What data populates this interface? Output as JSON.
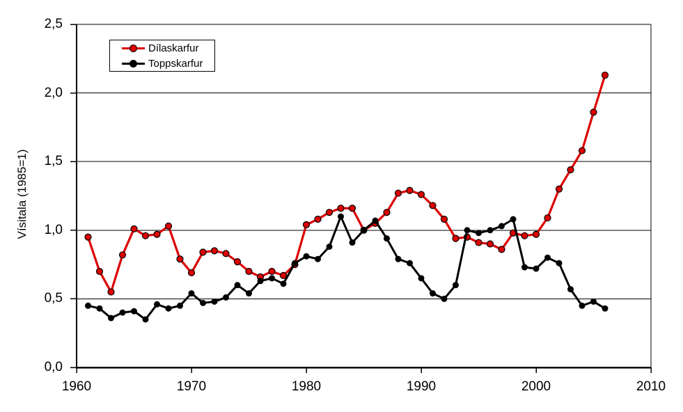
{
  "chart_data": {
    "type": "line",
    "title": "",
    "xlabel": "",
    "ylabel": "Vísitala (1985=1)",
    "xlim": [
      1960,
      2010
    ],
    "ylim": [
      0,
      2.5
    ],
    "grid": "horizontal",
    "legend_position": "top-left",
    "decimal_separator": ",",
    "x_tick_labels": [
      "1960",
      "1970",
      "1980",
      "1990",
      "2000",
      "2010"
    ],
    "x_tick_values": [
      1960,
      1970,
      1980,
      1990,
      2000,
      2010
    ],
    "y_tick_labels": [
      "0,0",
      "0,5",
      "1,0",
      "1,5",
      "2,0",
      "2,5"
    ],
    "y_tick_values": [
      0,
      0.5,
      1.0,
      1.5,
      2.0,
      2.5
    ],
    "x": [
      1961,
      1962,
      1963,
      1964,
      1965,
      1966,
      1967,
      1968,
      1969,
      1970,
      1971,
      1972,
      1973,
      1974,
      1975,
      1976,
      1977,
      1978,
      1979,
      1980,
      1981,
      1982,
      1983,
      1984,
      1985,
      1986,
      1987,
      1988,
      1989,
      1990,
      1991,
      1992,
      1993,
      1994,
      1995,
      1996,
      1997,
      1998,
      1999,
      2000,
      2001,
      2002,
      2003,
      2004,
      2005,
      2006
    ],
    "series": [
      {
        "name": "Dílaskarfur",
        "color": "#dd0000",
        "marker": "circle",
        "values": [
          0.95,
          0.7,
          0.55,
          0.82,
          1.01,
          0.96,
          0.97,
          1.03,
          0.79,
          0.69,
          0.84,
          0.85,
          0.83,
          0.77,
          0.7,
          0.66,
          0.7,
          0.67,
          0.75,
          1.04,
          1.08,
          1.13,
          1.16,
          1.16,
          1.0,
          1.05,
          1.13,
          1.27,
          1.29,
          1.26,
          1.18,
          1.08,
          0.94,
          0.95,
          0.91,
          0.9,
          0.86,
          0.98,
          0.96,
          0.97,
          1.09,
          1.3,
          1.44,
          1.58,
          1.86,
          2.13
        ]
      },
      {
        "name": "Toppskarfur",
        "color": "#000000",
        "marker": "circle",
        "values": [
          0.45,
          0.43,
          0.36,
          0.4,
          0.41,
          0.35,
          0.46,
          0.43,
          0.45,
          0.54,
          0.47,
          0.48,
          0.51,
          0.6,
          0.54,
          0.63,
          0.65,
          0.61,
          0.76,
          0.81,
          0.79,
          0.88,
          1.1,
          0.91,
          1.0,
          1.07,
          0.94,
          0.79,
          0.76,
          0.65,
          0.54,
          0.5,
          0.6,
          1.0,
          0.98,
          1.0,
          1.03,
          1.08,
          0.73,
          0.72,
          0.8,
          0.76,
          0.57,
          0.45,
          0.48,
          0.43
        ]
      }
    ]
  }
}
